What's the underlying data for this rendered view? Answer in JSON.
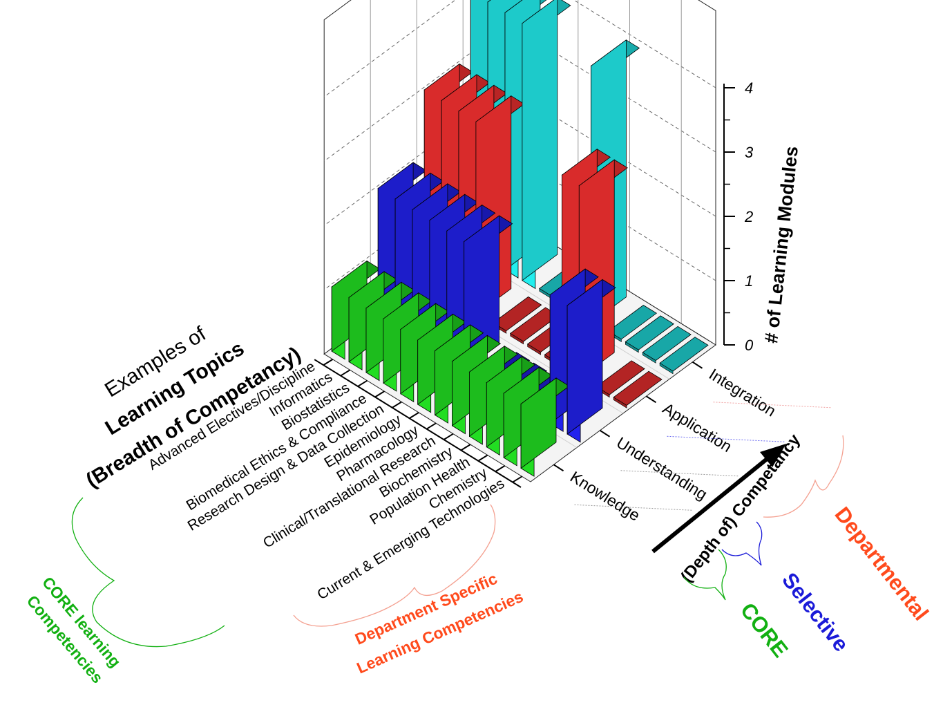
{
  "chart_data": {
    "type": "bar",
    "subtype": "3d-bar",
    "title_lines": [
      "Examples of",
      "Learning Topics",
      "(Breadth of Competancy)"
    ],
    "zlabel": "# of Learning Modules",
    "depth_label": "(Depth of) Competancy",
    "zlim": [
      0,
      4
    ],
    "z_ticks": [
      "0",
      "1",
      "2",
      "3",
      "4"
    ],
    "topics": [
      "Current & Emerging Technologies",
      "Chemistry",
      "Population Health",
      "Biochemistry",
      "Clinical/Translational Research",
      "Pharmacology",
      "Epidemiology",
      "Research Design & Data Collection",
      "Biomedical Ethics & Compliance",
      "Biostatistics",
      "Informatics",
      "Advanced Electives/Discipline"
    ],
    "levels": [
      "Knowledge",
      "Understanding",
      "Application",
      "Integration"
    ],
    "series": [
      {
        "level": "Knowledge",
        "values": [
          1,
          1,
          1,
          1,
          1,
          1,
          1,
          1,
          1,
          1,
          1,
          1
        ]
      },
      {
        "level": "Understanding",
        "values": [
          2,
          2,
          0,
          0,
          0,
          0,
          2,
          2,
          2,
          2,
          2,
          2
        ]
      },
      {
        "level": "Application",
        "values": [
          0,
          0,
          3,
          3,
          0,
          0,
          0,
          0,
          3,
          3,
          3,
          3
        ]
      },
      {
        "level": "Integration",
        "values": [
          0,
          0,
          0,
          0,
          4,
          0,
          0,
          0,
          4,
          4,
          4,
          4
        ]
      }
    ],
    "colors": {
      "Knowledge": "#22dd22",
      "Understanding": "#2222ee",
      "Application": "#ff3333",
      "Integration": "#22eeee"
    },
    "annotations": {
      "core_topics": [
        "CORE learning",
        "Competencies"
      ],
      "dept_topics": [
        "Department Specific",
        "Learning Competencies"
      ],
      "depth_groups": [
        "CORE",
        "Selective",
        "Departmental"
      ]
    },
    "annotation_colors": {
      "core": "#12b012",
      "selective": "#1a1ad8",
      "departmental": "#ff4a1c"
    }
  }
}
